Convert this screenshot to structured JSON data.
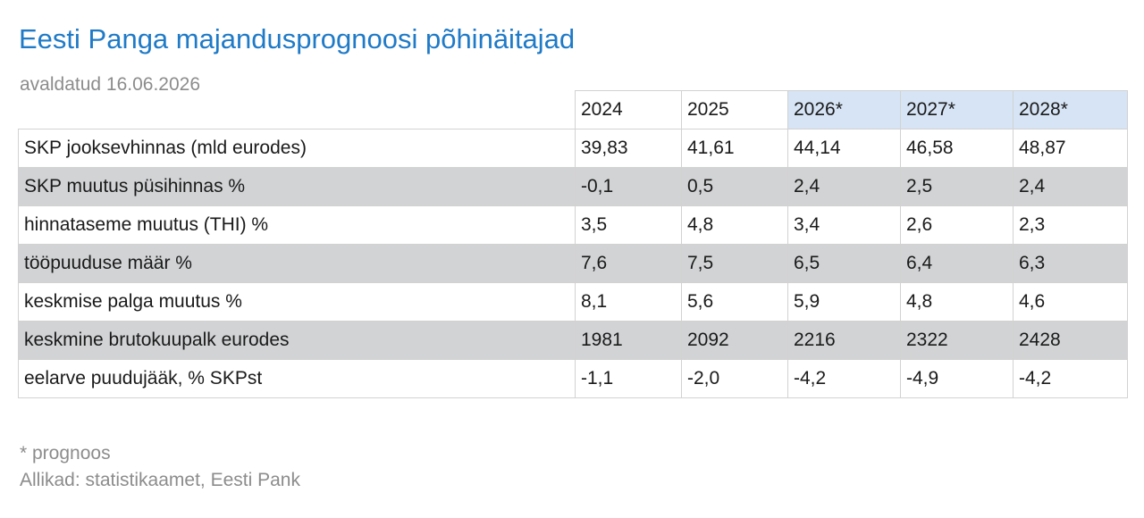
{
  "title": "Eesti Panga majandusprognoosi põhinäitajad",
  "subtitle": "avaldatud 16.06.2026",
  "table": {
    "columns": [
      "2024",
      "2025",
      "2026*",
      "2027*",
      "2028*"
    ],
    "forecast_header_color": "#d6e4f5",
    "shaded_row_color": "#d1d3d5",
    "rows": [
      {
        "label": "SKP jooksevhinnas (mld eurodes)",
        "values": [
          "39,83",
          "41,61",
          "44,14",
          "46,58",
          "48,87"
        ],
        "shaded": false
      },
      {
        "label": "SKP muutus püsihinnas %",
        "values": [
          "-0,1",
          "0,5",
          "2,4",
          "2,5",
          "2,4"
        ],
        "shaded": true
      },
      {
        "label": "hinnataseme muutus (THI) %",
        "values": [
          "3,5",
          "4,8",
          "3,4",
          "2,6",
          "2,3"
        ],
        "shaded": false
      },
      {
        "label": "tööpuuduse määr %",
        "values": [
          "7,6",
          "7,5",
          "6,5",
          "6,4",
          "6,3"
        ],
        "shaded": true
      },
      {
        "label": "keskmise palga muutus %",
        "values": [
          "8,1",
          "5,6",
          "5,9",
          "4,8",
          "4,6"
        ],
        "shaded": false
      },
      {
        "label": "keskmine brutokuupalk eurodes",
        "values": [
          "1981",
          "2092",
          "2216",
          "2322",
          "2428"
        ],
        "shaded": true
      },
      {
        "label": "eelarve puudujääk, % SKPst",
        "values": [
          "-1,1",
          "-2,0",
          "-4,2",
          "-4,9",
          "-4,2"
        ],
        "shaded": false
      }
    ]
  },
  "footnote": "* prognoos",
  "source": "Allikad: statistikaamet, Eesti Pank"
}
